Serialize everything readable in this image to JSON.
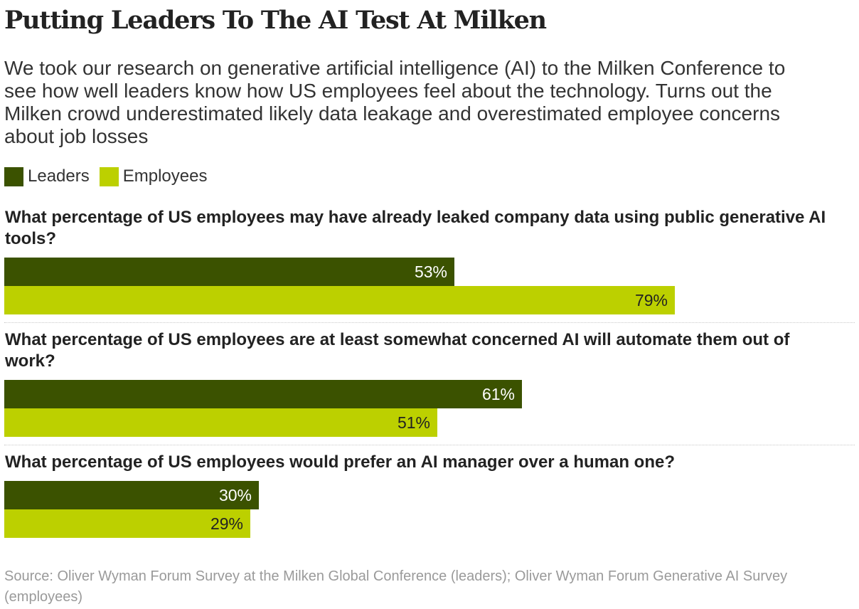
{
  "title": "Putting Leaders To The AI Test At Milken",
  "subtitle": "We took our research on generative artificial intelligence (AI) to the Milken Conference to see how well leaders know how US employees feel about the technology. Turns out the Milken crowd underestimated likely data leakage and overestimated employee concerns about job losses",
  "legend": [
    {
      "label": "Leaders",
      "color": "#3b5200"
    },
    {
      "label": "Employees",
      "color": "#bcd000"
    }
  ],
  "source": "Source: Oliver Wyman Forum Survey at the Milken Global Conference (leaders); Oliver Wyman Forum Generative AI Survey (employees)",
  "chart_data": {
    "type": "bar",
    "orientation": "horizontal",
    "title": "Putting Leaders To The AI Test At Milken",
    "unit": "%",
    "xlim": [
      0,
      100
    ],
    "grid": false,
    "legend_position": "top-left",
    "series": [
      {
        "name": "Leaders",
        "color": "#3b5200",
        "label_color": "#ffffff"
      },
      {
        "name": "Employees",
        "color": "#bcd000",
        "label_color": "#222222"
      }
    ],
    "groups": [
      {
        "question": "What percentage of US employees may have already leaked company data using public generative AI tools?",
        "values": [
          53,
          79
        ],
        "labels": [
          "53%",
          "79%"
        ]
      },
      {
        "question": "What percentage of US employees are at least somewhat concerned AI will automate them out of work?",
        "values": [
          61,
          51
        ],
        "labels": [
          "61%",
          "51%"
        ]
      },
      {
        "question": "What percentage of US employees would prefer an AI manager over a human one?",
        "values": [
          30,
          29
        ],
        "labels": [
          "30%",
          "29%"
        ]
      }
    ]
  }
}
